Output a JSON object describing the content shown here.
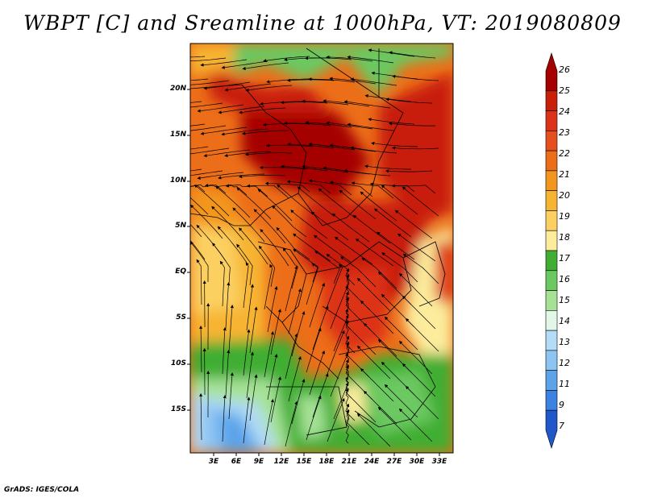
{
  "title": "WBPT [C] and Sreamline at 1000hPa, VT: 2019080809",
  "credit": "GrADS: IGES/COLA",
  "map": {
    "lat_labels": [
      "20N",
      "15N",
      "10N",
      "5N",
      "EQ",
      "5S",
      "10S",
      "15S"
    ],
    "lon_labels": [
      "3E",
      "6E",
      "9E",
      "12E",
      "15E",
      "18E",
      "21E",
      "24E",
      "27E",
      "30E",
      "33E"
    ]
  },
  "colorbar": {
    "labels": [
      "26",
      "25",
      "24",
      "23",
      "22",
      "21",
      "20",
      "19",
      "18",
      "17",
      "16",
      "15",
      "14",
      "13",
      "12",
      "11",
      "9",
      "7"
    ],
    "colors": [
      "#a50000",
      "#c81e0a",
      "#dc3219",
      "#e6501e",
      "#ec6e19",
      "#f3961e",
      "#f7b432",
      "#fbd060",
      "#fcec9c",
      "#3fae32",
      "#6cc860",
      "#a6e296",
      "#e2f7e7",
      "#b4dcf7",
      "#8cc4f2",
      "#5ca4ea",
      "#3c82e2",
      "#2058cc"
    ]
  }
}
